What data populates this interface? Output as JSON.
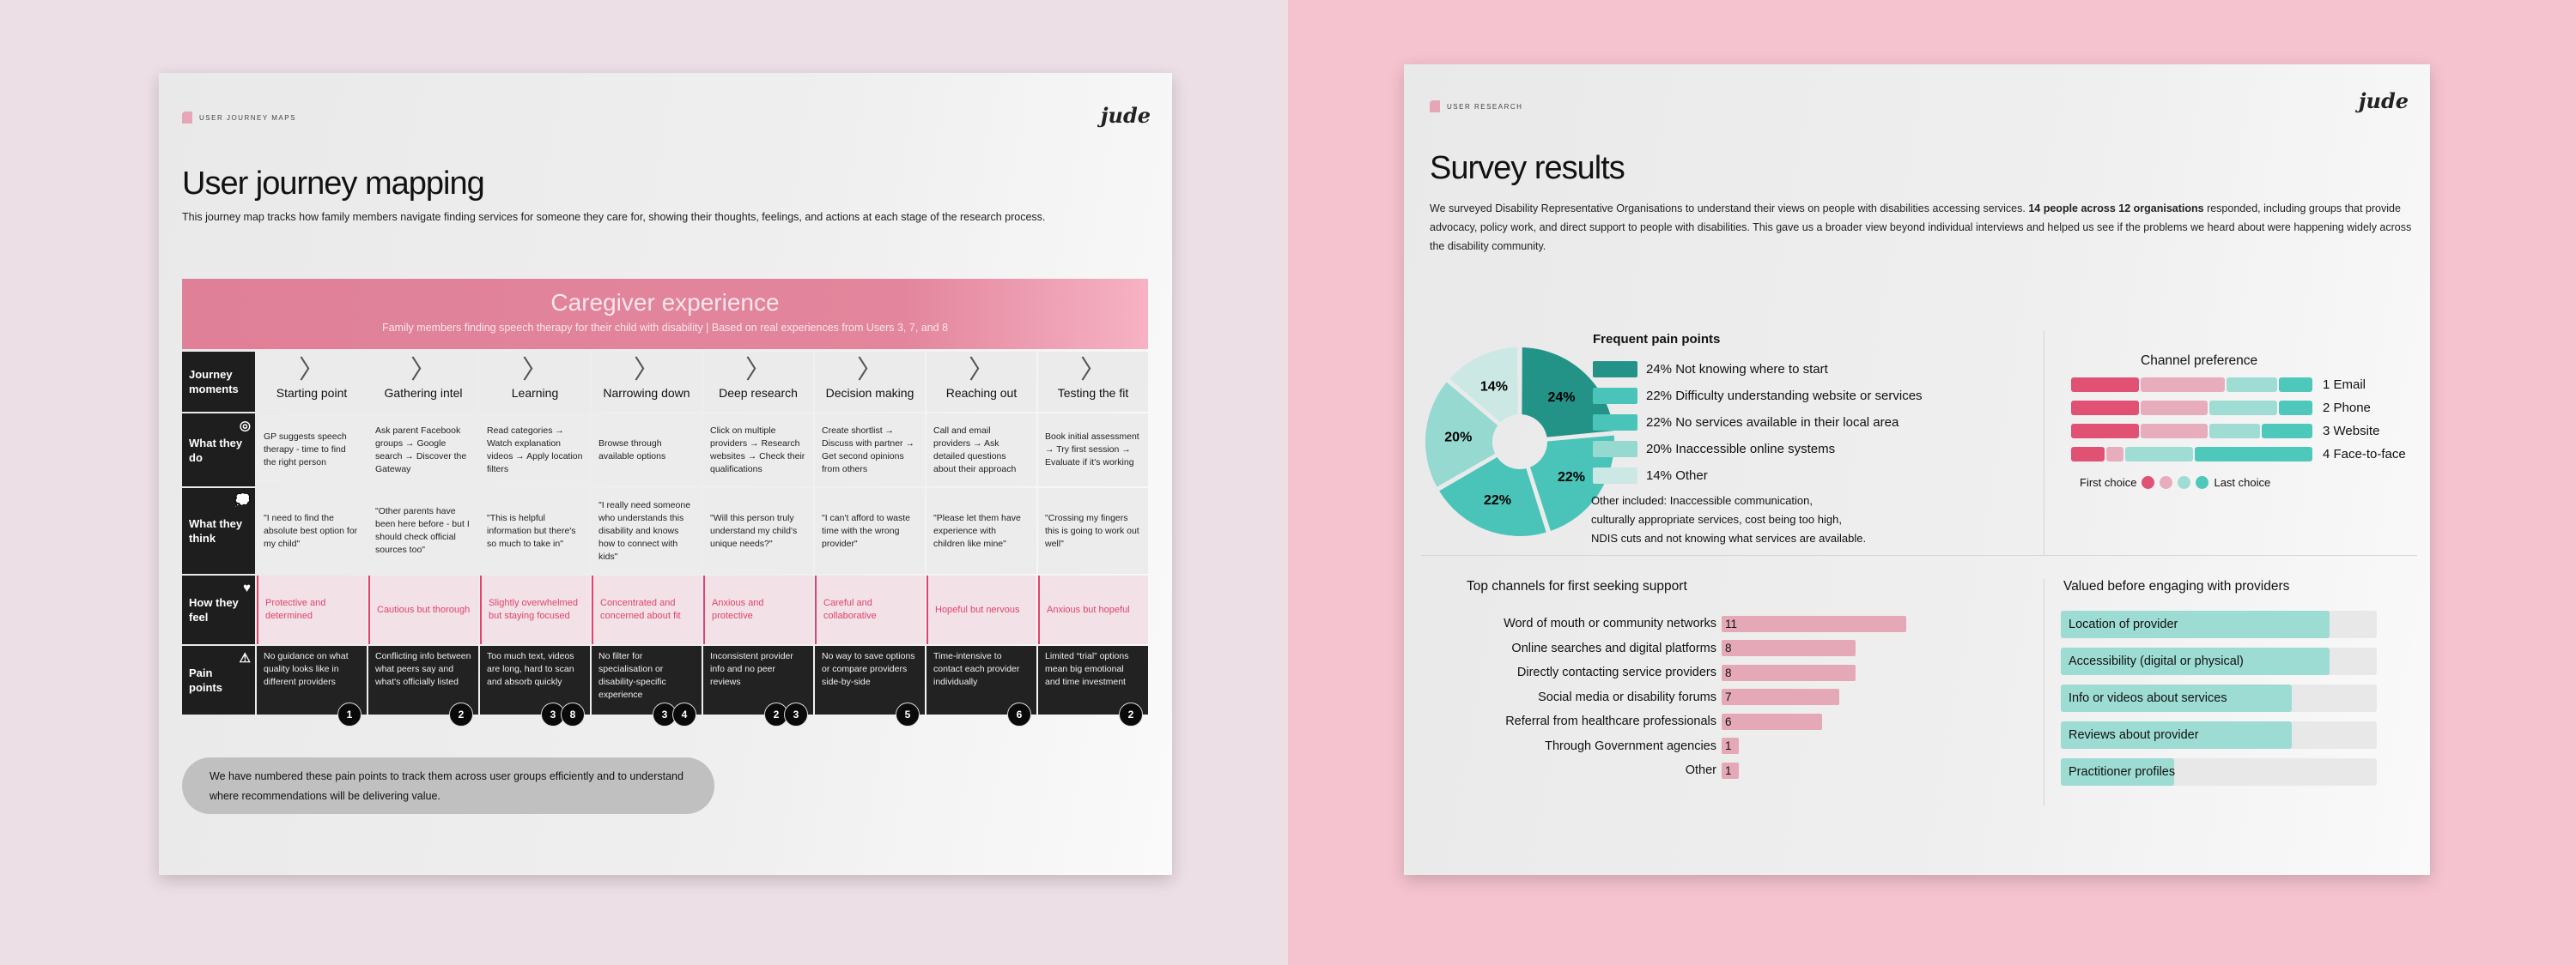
{
  "left_page": {
    "tag": "USER JOURNEY MAPS",
    "logo": "jude",
    "title": "User journey mapping",
    "subtitle": "This journey map tracks how family members navigate finding services for someone they care for, showing their thoughts, feelings, and actions at each stage of the research process.",
    "banner": {
      "title": "Caregiver experience",
      "subtitle": "Family members finding speech therapy for their child with disability | Based on real experiences from Users 3, 7, and 8"
    },
    "row_labels": [
      {
        "label": "Journey moments",
        "icon": ""
      },
      {
        "label": "What they do",
        "icon": "target-icon"
      },
      {
        "label": "What they think",
        "icon": "thought-bubble-icon"
      },
      {
        "label": "How they feel",
        "icon": "heart-icon"
      },
      {
        "label": "Pain points",
        "icon": "warning-icon"
      }
    ],
    "stages": [
      {
        "moment": "Starting point",
        "do": "GP suggests speech therapy - time to find the right person",
        "think": "\"I need to find the absolute best option for my child\"",
        "feel": "Protective and determined",
        "pain": "No guidance on what quality looks like in different providers",
        "nums": [
          "1"
        ]
      },
      {
        "moment": "Gathering intel",
        "do": "Ask parent Facebook groups → Google search → Discover the Gateway",
        "think": "\"Other parents have been here before - but I should check official sources too\"",
        "feel": "Cautious but thorough",
        "pain": "Conflicting info between what peers say and what's officially listed",
        "nums": [
          "2"
        ]
      },
      {
        "moment": "Learning",
        "do": "Read categories → Watch explanation videos → Apply location filters",
        "think": "\"This is helpful information but there's so much to take in\"",
        "feel": "Slightly overwhelmed but staying focused",
        "pain": "Too much text, videos are long, hard to scan and absorb quickly",
        "nums": [
          "3",
          "8"
        ]
      },
      {
        "moment": "Narrowing down",
        "do": "Browse through available options",
        "think": "\"I really need someone who understands this disability and knows how to connect with kids\"",
        "feel": "Concentrated and concerned about fit",
        "pain": "No filter for specialisation or disability-specific experience",
        "nums": [
          "3",
          "4"
        ]
      },
      {
        "moment": "Deep research",
        "do": "Click on multiple providers → Research websites → Check their qualifications",
        "think": "\"Will this person truly understand my child's unique needs?\"",
        "feel": "Anxious and protective",
        "pain": "Inconsistent provider info and no peer reviews",
        "nums": [
          "2",
          "3"
        ]
      },
      {
        "moment": "Decision making",
        "do": "Create shortlist → Discuss with partner → Get second opinions from others",
        "think": "\"I can't afford to waste time with the wrong provider\"",
        "feel": "Careful and collaborative",
        "pain": "No way to save options or compare providers side-by-side",
        "nums": [
          "5"
        ]
      },
      {
        "moment": "Reaching out",
        "do": "Call and email providers → Ask detailed questions about their approach",
        "think": "\"Please let them have experience with children like mine\"",
        "feel": "Hopeful but nervous",
        "pain": "Time-intensive to contact each provider individually",
        "nums": [
          "6"
        ]
      },
      {
        "moment": "Testing the fit",
        "do": "Book initial assessment → Try first session → Evaluate if it's working",
        "think": "\"Crossing my fingers this is going to work out well\"",
        "feel": "Anxious but hopeful",
        "pain": "Limited “trial” options mean big emotional and time investment",
        "nums": [
          "2"
        ]
      }
    ],
    "callout": "We have numbered these pain points to track them across user groups efficiently and to understand where recommendations will be delivering value."
  },
  "right_page": {
    "tag": "USER RESEARCH",
    "logo": "jude",
    "title": "Survey results",
    "intro_a": "We surveyed Disability Representative Organisations to understand their views on people with disabilities accessing services. ",
    "intro_bold": "14 people across 12 organisations",
    "intro_b": " responded, including groups that provide advocacy, policy work, and direct support to people with disabilities. This gave us a broader view beyond individual interviews and helped us see if the problems we heard about were happening widely across the disability community.",
    "note": [
      "Other included: Inaccessible communication,",
      "culturally appropriate services, cost being too high,",
      "NDIS cuts and not knowing what services are available."
    ]
  },
  "chart_data": [
    {
      "type": "pie",
      "title": "Frequent pain points",
      "donut": true,
      "slices": [
        {
          "label": "24% Not knowing where to start",
          "value": 24,
          "pct": "24%",
          "color": "#249387"
        },
        {
          "label": "22% Difficulty understanding website or services",
          "value": 22,
          "pct": "22%",
          "color": "#4ac4b8"
        },
        {
          "label": "22% No services available in their local area",
          "value": 22,
          "pct": "22%",
          "color": "#4ac4b8"
        },
        {
          "label": "20% Inaccessible online systems",
          "value": 20,
          "pct": "20%",
          "color": "#96d9d0"
        },
        {
          "label": "14% Other",
          "value": 14,
          "pct": "14%",
          "color": "#cbe8e4"
        }
      ]
    },
    {
      "type": "bar",
      "subtype": "stacked-horizontal",
      "title": "Channel preference",
      "categories": [
        "1 Email",
        "2 Phone",
        "3 Website",
        "4 Face-to-face"
      ],
      "rank_colors": [
        "#e05173",
        "#e8adbc",
        "#9fdcd4",
        "#4ec8ba"
      ],
      "series": [
        [
          4,
          5,
          3,
          2
        ],
        [
          4,
          4,
          4,
          2
        ],
        [
          4,
          4,
          3,
          3
        ],
        [
          2,
          1,
          4,
          7
        ]
      ],
      "legend": {
        "first": "First choice",
        "last": "Last choice"
      }
    },
    {
      "type": "bar",
      "subtype": "horizontal",
      "title": "Top channels for first seeking support",
      "color": "#e5a8b7",
      "categories": [
        "Word of mouth or community networks",
        "Online searches and digital platforms",
        "Directly contacting service providers",
        "Social media or disability forums",
        "Referral from healthcare professionals",
        "Through Government agencies",
        "Other"
      ],
      "values": [
        11,
        8,
        8,
        7,
        6,
        1,
        1
      ]
    },
    {
      "type": "bar",
      "subtype": "horizontal-progress",
      "title": "Valued before engaging with providers",
      "color": "#9ddcd3",
      "categories": [
        "Location of provider",
        "Accessibility (digital or physical)",
        "Info or videos about services",
        "Reviews about provider",
        "Practitioner profiles"
      ],
      "values_fraction": [
        0.85,
        0.85,
        0.73,
        0.73,
        0.36
      ]
    }
  ]
}
